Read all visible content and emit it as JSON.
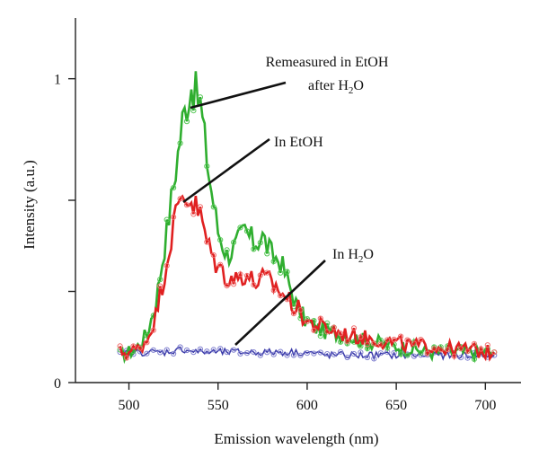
{
  "chart_data": {
    "type": "line",
    "title": "",
    "xlabel": "Emission wavelength (nm)",
    "ylabel": "Intensity (a.u.)",
    "xlim": [
      470,
      720
    ],
    "ylim": [
      0,
      1.2
    ],
    "x_ticks": [
      500,
      550,
      600,
      650,
      700
    ],
    "y_ticks": [
      0,
      0.3,
      0.6,
      1.0
    ],
    "y_tick_labels": [
      "0",
      "",
      "",
      "1"
    ],
    "grid": false,
    "legend": "none",
    "series": [
      {
        "name": "Remeasured in EtOH after H2O",
        "color": "#2fae2f",
        "marker_color": "#55c855",
        "x": [
          495,
          500,
          505,
          510,
          515,
          520,
          525,
          530,
          535,
          540,
          545,
          550,
          555,
          560,
          565,
          570,
          575,
          580,
          585,
          590,
          595,
          600,
          605,
          610,
          620,
          630,
          640,
          650,
          660,
          670,
          680,
          690,
          700,
          705
        ],
        "y": [
          0.09,
          0.1,
          0.12,
          0.16,
          0.26,
          0.45,
          0.65,
          0.86,
          0.98,
          0.92,
          0.68,
          0.5,
          0.42,
          0.45,
          0.5,
          0.46,
          0.48,
          0.42,
          0.4,
          0.32,
          0.24,
          0.2,
          0.18,
          0.17,
          0.16,
          0.14,
          0.13,
          0.12,
          0.11,
          0.1,
          0.1,
          0.1,
          0.1,
          0.1
        ]
      },
      {
        "name": "In EtOH",
        "color": "#e02020",
        "marker_color": "#f07070",
        "x": [
          495,
          500,
          505,
          510,
          515,
          520,
          525,
          530,
          535,
          540,
          545,
          550,
          555,
          560,
          565,
          570,
          575,
          580,
          585,
          590,
          595,
          600,
          605,
          610,
          620,
          630,
          640,
          650,
          660,
          670,
          680,
          690,
          700,
          705
        ],
        "y": [
          0.1,
          0.1,
          0.11,
          0.14,
          0.22,
          0.36,
          0.52,
          0.62,
          0.6,
          0.55,
          0.44,
          0.38,
          0.35,
          0.34,
          0.36,
          0.33,
          0.34,
          0.33,
          0.3,
          0.27,
          0.24,
          0.2,
          0.19,
          0.18,
          0.16,
          0.15,
          0.14,
          0.13,
          0.12,
          0.12,
          0.11,
          0.11,
          0.1,
          0.1
        ]
      },
      {
        "name": "In H2O",
        "color": "#3a3aa8",
        "marker_color": "#8080d0",
        "x": [
          495,
          500,
          510,
          520,
          530,
          540,
          550,
          560,
          570,
          580,
          590,
          600,
          610,
          620,
          630,
          640,
          650,
          660,
          670,
          680,
          690,
          700,
          705
        ],
        "y": [
          0.09,
          0.1,
          0.1,
          0.1,
          0.11,
          0.1,
          0.1,
          0.1,
          0.1,
          0.1,
          0.1,
          0.1,
          0.09,
          0.09,
          0.09,
          0.09,
          0.09,
          0.09,
          0.09,
          0.09,
          0.09,
          0.09,
          0.09
        ]
      }
    ],
    "annotations": [
      {
        "line1": "Remeasured in EtOH",
        "line2_pre": "after H",
        "line2_sub": "2",
        "line2_post": "O",
        "target_x": 536,
        "target_y": 0.87
      },
      {
        "line1_pre": "In EtOH",
        "target_x": 533,
        "target_y": 0.58
      },
      {
        "line1_pre": "In H",
        "line1_sub": "2",
        "line1_post": "O",
        "target_x": 566,
        "target_y": 0.12
      }
    ]
  }
}
